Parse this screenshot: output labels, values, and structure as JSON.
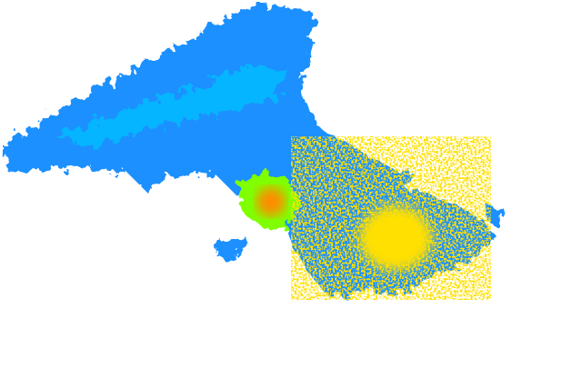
{
  "map": {
    "type": "weather-radar-reflectivity",
    "background": "#ffffff",
    "colors": {
      "light": "#1e90ff",
      "light_moderate": "#00bfff",
      "moderate": "#7fff00",
      "heavy": "#ffe000",
      "very_heavy": "#ff8c00"
    }
  }
}
